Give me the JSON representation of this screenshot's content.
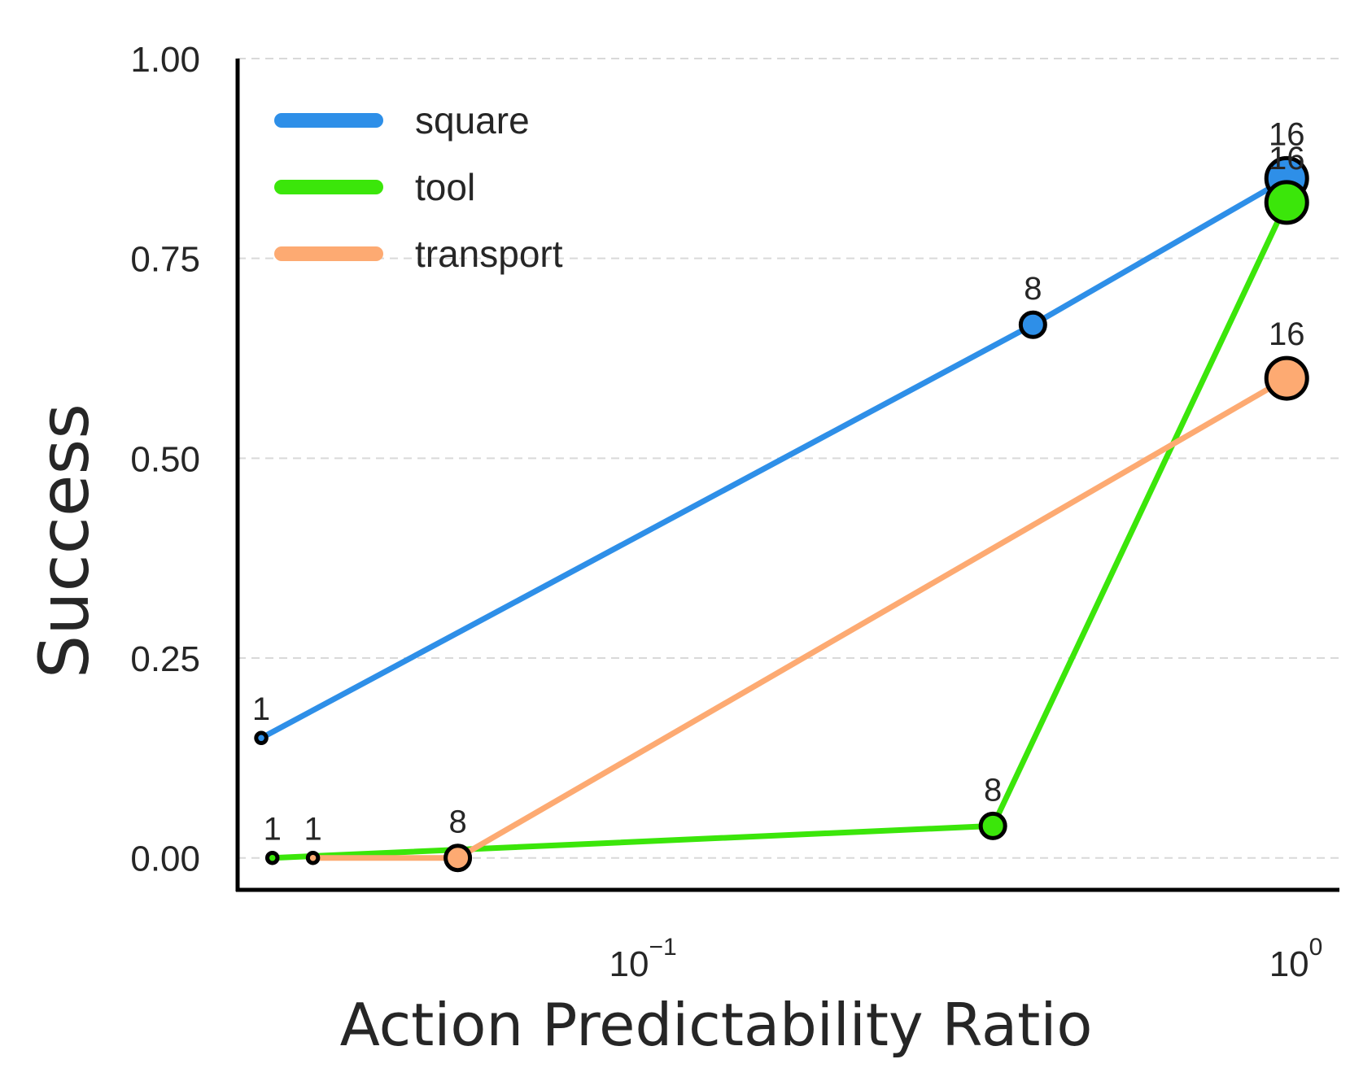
{
  "chart_data": {
    "type": "line",
    "xlabel": "Action Predictability Ratio",
    "ylabel": "Success",
    "xscale": "log",
    "xlim": [
      0.023,
      1.12
    ],
    "ylim": [
      -0.04,
      1.0
    ],
    "x_ticks": [
      {
        "value": 0.1,
        "base": "10",
        "exp": "−1"
      },
      {
        "value": 1.0,
        "base": "10",
        "exp": "0"
      }
    ],
    "y_ticks": [
      {
        "value": 0.0,
        "label": "0.00"
      },
      {
        "value": 0.25,
        "label": "0.25"
      },
      {
        "value": 0.5,
        "label": "0.50"
      },
      {
        "value": 0.75,
        "label": "0.75"
      },
      {
        "value": 1.0,
        "label": "1.00"
      }
    ],
    "grid": "horizontal-dashed",
    "legend_position": "top-left",
    "series": [
      {
        "name": "square",
        "color": "#2E8FE8",
        "points": [
          {
            "x": 0.025,
            "y": 0.15,
            "label": "1"
          },
          {
            "x": 0.38,
            "y": 0.667,
            "label": "8"
          },
          {
            "x": 0.93,
            "y": 0.85,
            "label": "16"
          }
        ]
      },
      {
        "name": "tool",
        "color": "#3BE60A",
        "points": [
          {
            "x": 0.026,
            "y": 0.0,
            "label": "1"
          },
          {
            "x": 0.33,
            "y": 0.04,
            "label": "8"
          },
          {
            "x": 0.93,
            "y": 0.82,
            "label": "16"
          }
        ]
      },
      {
        "name": "transport",
        "color": "#FDAA72",
        "points": [
          {
            "x": 0.03,
            "y": 0.0,
            "label": "1"
          },
          {
            "x": 0.05,
            "y": 0.0,
            "label": "8"
          },
          {
            "x": 0.93,
            "y": 0.6,
            "label": "16"
          }
        ]
      }
    ]
  }
}
